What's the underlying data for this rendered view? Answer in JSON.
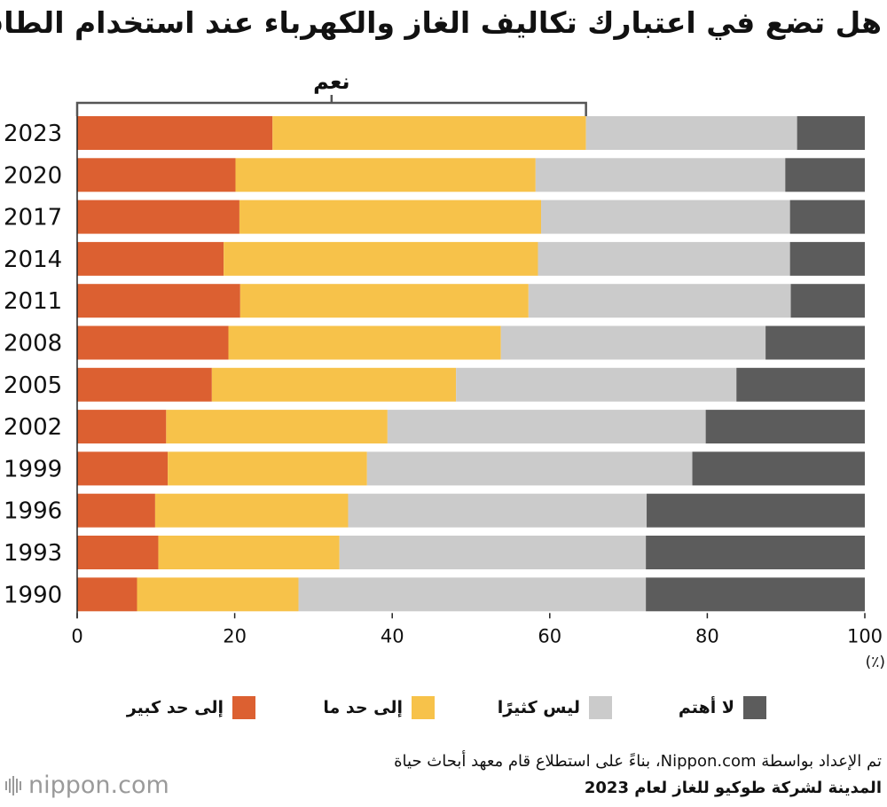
{
  "header": {
    "title": "هل تضع في اعتبارك تكاليف الغاز والكهرباء عند استخدام الطاقة"
  },
  "chart_data": {
    "type": "bar",
    "orientation": "horizontal",
    "stacked": true,
    "categories": [
      "2023",
      "2020",
      "2017",
      "2014",
      "2011",
      "2008",
      "2005",
      "2002",
      "1999",
      "1996",
      "1993",
      "1990"
    ],
    "series": [
      {
        "name": "إلى حد كبير",
        "color": "#dc6031",
        "values": [
          24.8,
          20.1,
          20.6,
          18.6,
          20.7,
          19.2,
          17.1,
          11.3,
          11.5,
          9.9,
          10.3,
          7.6
        ]
      },
      {
        "name": "إلى حد ما",
        "color": "#f7c24a",
        "values": [
          39.8,
          38.1,
          38.3,
          39.9,
          36.6,
          34.6,
          31.0,
          28.1,
          25.3,
          24.5,
          23.0,
          20.5
        ]
      },
      {
        "name": "ليس كثيرًا",
        "color": "#cbcbcb",
        "values": [
          26.8,
          31.7,
          31.6,
          32.0,
          33.3,
          33.6,
          35.6,
          40.4,
          41.3,
          37.9,
          38.9,
          44.1
        ]
      },
      {
        "name": "لا أهتم",
        "color": "#5c5c5c",
        "values": [
          8.6,
          10.1,
          9.5,
          9.5,
          9.4,
          12.6,
          16.3,
          20.2,
          21.9,
          27.7,
          27.8,
          27.8
        ]
      }
    ],
    "xlim": [
      0,
      100
    ],
    "xticks": [
      0,
      20,
      40,
      60,
      80,
      100
    ],
    "unit_label": "(٪)",
    "bracket": {
      "label": "نعم",
      "from": 0,
      "to": 64.6
    },
    "legend_order": [
      "إلى حد كبير",
      "إلى حد ما",
      "ليس كثيرًا",
      "لا أهتم"
    ]
  },
  "footer": {
    "source_line1": "تم الإعداد بواسطة Nippon.com، بناءً على استطلاع قام معهد أبحاث حياة",
    "source_line2": "المدينة لشركة طوكيو للغاز لعام 2023",
    "logo": "nippon.com"
  }
}
